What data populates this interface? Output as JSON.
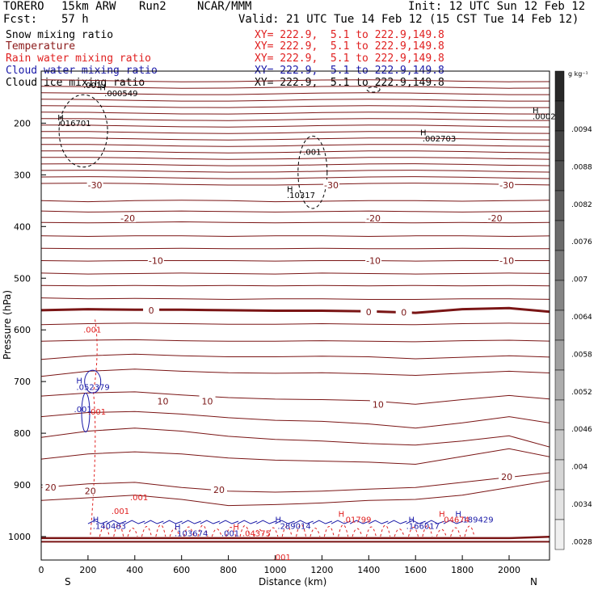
{
  "header": {
    "model": "TORERO",
    "resolution": "15km ARW",
    "run": "Run2",
    "org": "NCAR/MMM",
    "init": "Init: 12 UTC Sun 12 Feb 12",
    "fcst_label": "Fcst:",
    "fcst_value": "57 h",
    "valid": "Valid: 21 UTC Tue 14 Feb 12 (15 CST Tue 14 Feb 12)"
  },
  "legend": [
    {
      "name": "Snow mixing ratio",
      "color": "#000000",
      "xy": "XY= 222.9,  5.1 to 222.9,149.8"
    },
    {
      "name": "Temperature",
      "color": "#8b1a1a",
      "xy": "XY= 222.9,  5.1 to 222.9,149.8"
    },
    {
      "name": "Rain water mixing ratio",
      "color": "#e02020",
      "xy": "XY= 222.9,  5.1 to 222.9,149.8"
    },
    {
      "name": "Cloud water mixing ratio",
      "color": "#1a1aa8",
      "xy": "XY= 222.9,  5.1 to 222.9,149.8"
    },
    {
      "name": "Cloud ice mixing ratio",
      "color": "#000000",
      "xy": "XY= 222.9,  5.1 to 222.9,149.8"
    }
  ],
  "chart_data": {
    "type": "contour cross-section",
    "xlabel": "Distance (km)",
    "ylabel": "Pressure (hPa)",
    "xlim": [
      0,
      2200
    ],
    "ylim_hPa": [
      1050,
      100
    ],
    "x_ticks": [
      "0",
      "200",
      "400",
      "600",
      "800",
      "1000",
      "1200",
      "1400",
      "1600",
      "1800",
      "2000"
    ],
    "x_tick_values": [
      0,
      200,
      400,
      600,
      800,
      1000,
      1200,
      1400,
      1600,
      1800,
      2000
    ],
    "y_ticks": [
      "200",
      "300",
      "400",
      "500",
      "600",
      "700",
      "800",
      "900",
      "1000"
    ],
    "y_tick_values": [
      200,
      300,
      400,
      500,
      600,
      700,
      800,
      900,
      1000
    ],
    "endpoint_left": "S",
    "endpoint_right": "N",
    "temperature_contours_C": [
      20,
      10,
      0,
      -10,
      -20,
      -30
    ],
    "temperature_labels": [
      {
        "text": "-30",
        "x": 230,
        "p": 320
      },
      {
        "text": "-30",
        "x": 1240,
        "p": 320
      },
      {
        "text": "-30",
        "x": 1990,
        "p": 320
      },
      {
        "text": "-20",
        "x": 370,
        "p": 384
      },
      {
        "text": "-20",
        "x": 1420,
        "p": 384
      },
      {
        "text": "-20",
        "x": 1940,
        "p": 384
      },
      {
        "text": "-10",
        "x": 490,
        "p": 466
      },
      {
        "text": "-10",
        "x": 1420,
        "p": 466
      },
      {
        "text": "-10",
        "x": 1990,
        "p": 466
      },
      {
        "text": "0",
        "x": 470,
        "p": 562
      },
      {
        "text": "0",
        "x": 1400,
        "p": 565
      },
      {
        "text": "0",
        "x": 1550,
        "p": 566
      },
      {
        "text": "10",
        "x": 520,
        "p": 738
      },
      {
        "text": "10",
        "x": 710,
        "p": 738
      },
      {
        "text": "10",
        "x": 1440,
        "p": 744
      },
      {
        "text": "20",
        "x": 40,
        "p": 905
      },
      {
        "text": "20",
        "x": 210,
        "p": 912
      },
      {
        "text": "20",
        "x": 760,
        "p": 909
      },
      {
        "text": "20",
        "x": 1990,
        "p": 884
      }
    ],
    "extrema_labels": [
      {
        "text": "H",
        "x": 250,
        "p": 136,
        "color": "#000000"
      },
      {
        "text": ".000549",
        "x": 270,
        "p": 148,
        "color": "#000000"
      },
      {
        "text": "H",
        "x": 70,
        "p": 195,
        "color": "#000000"
      },
      {
        "text": ".016701",
        "x": 70,
        "p": 206,
        "color": "#000000"
      },
      {
        "text": "H",
        "x": 1620,
        "p": 224,
        "color": "#000000"
      },
      {
        "text": ".002703",
        "x": 1630,
        "p": 235,
        "color": "#000000"
      },
      {
        "text": "H",
        "x": 2100,
        "p": 181,
        "color": "#000000"
      },
      {
        "text": ".0002",
        "x": 2100,
        "p": 192,
        "color": "#000000"
      },
      {
        "text": "H",
        "x": 1050,
        "p": 333,
        "color": "#000000"
      },
      {
        "text": ".10317",
        "x": 1050,
        "p": 345,
        "color": "#000000"
      },
      {
        "text": ".001",
        "x": 180,
        "p": 132,
        "color": "#000000"
      },
      {
        "text": ".001",
        "x": 1120,
        "p": 261,
        "color": "#000000"
      },
      {
        "text": ".001",
        "x": 180,
        "p": 605,
        "color": "#e02020"
      },
      {
        "text": ".001",
        "x": 200,
        "p": 764,
        "color": "#e02020"
      },
      {
        "text": ".001",
        "x": 380,
        "p": 930,
        "color": "#e02020"
      },
      {
        "text": ".001",
        "x": 300,
        "p": 956,
        "color": "#e02020"
      },
      {
        "text": ".001",
        "x": 990,
        "p": 1045,
        "color": "#e02020"
      },
      {
        "text": "H",
        "x": 150,
        "p": 704,
        "color": "#1a1aa8"
      },
      {
        "text": ".052379",
        "x": 150,
        "p": 716,
        "color": "#1a1aa8"
      },
      {
        "text": ".001",
        "x": 140,
        "p": 759,
        "color": "#1a1aa8"
      },
      {
        "text": "H",
        "x": 220,
        "p": 973,
        "color": "#1a1aa8"
      },
      {
        "text": ".140483",
        "x": 220,
        "p": 985,
        "color": "#1a1aa8"
      },
      {
        "text": "H",
        "x": 570,
        "p": 987,
        "color": "#1a1aa8"
      },
      {
        "text": ".103674",
        "x": 570,
        "p": 999,
        "color": "#1a1aa8"
      },
      {
        "text": ".001",
        "x": 770,
        "p": 999,
        "color": "#1a1aa8"
      },
      {
        "text": "H",
        "x": 1000,
        "p": 973,
        "color": "#1a1aa8"
      },
      {
        "text": ".289014",
        "x": 1010,
        "p": 985,
        "color": "#1a1aa8"
      },
      {
        "text": "H",
        "x": 1570,
        "p": 973,
        "color": "#1a1aa8"
      },
      {
        "text": ".166017",
        "x": 1560,
        "p": 985,
        "color": "#1a1aa8"
      },
      {
        "text": "H",
        "x": 1770,
        "p": 962,
        "color": "#1a1aa8"
      },
      {
        "text": ".189429",
        "x": 1790,
        "p": 973,
        "color": "#1a1aa8"
      },
      {
        "text": "H",
        "x": 1270,
        "p": 962,
        "color": "#e02020"
      },
      {
        "text": ".01799",
        "x": 1290,
        "p": 973,
        "color": "#e02020"
      },
      {
        "text": "H",
        "x": 1700,
        "p": 962,
        "color": "#e02020"
      },
      {
        "text": ".04674",
        "x": 1710,
        "p": 973,
        "color": "#e02020"
      },
      {
        "text": "H",
        "x": 820,
        "p": 987,
        "color": "#e02020"
      },
      {
        "text": ".04375",
        "x": 860,
        "p": 999,
        "color": "#e02020"
      }
    ],
    "colorbar": {
      "unit": "g kg⁻¹",
      "labels": [
        ".0094",
        ".0088",
        ".0082",
        ".0076",
        ".007",
        ".0064",
        ".0058",
        ".0052",
        ".0046",
        ".004",
        ".0034",
        ".0028"
      ]
    }
  }
}
